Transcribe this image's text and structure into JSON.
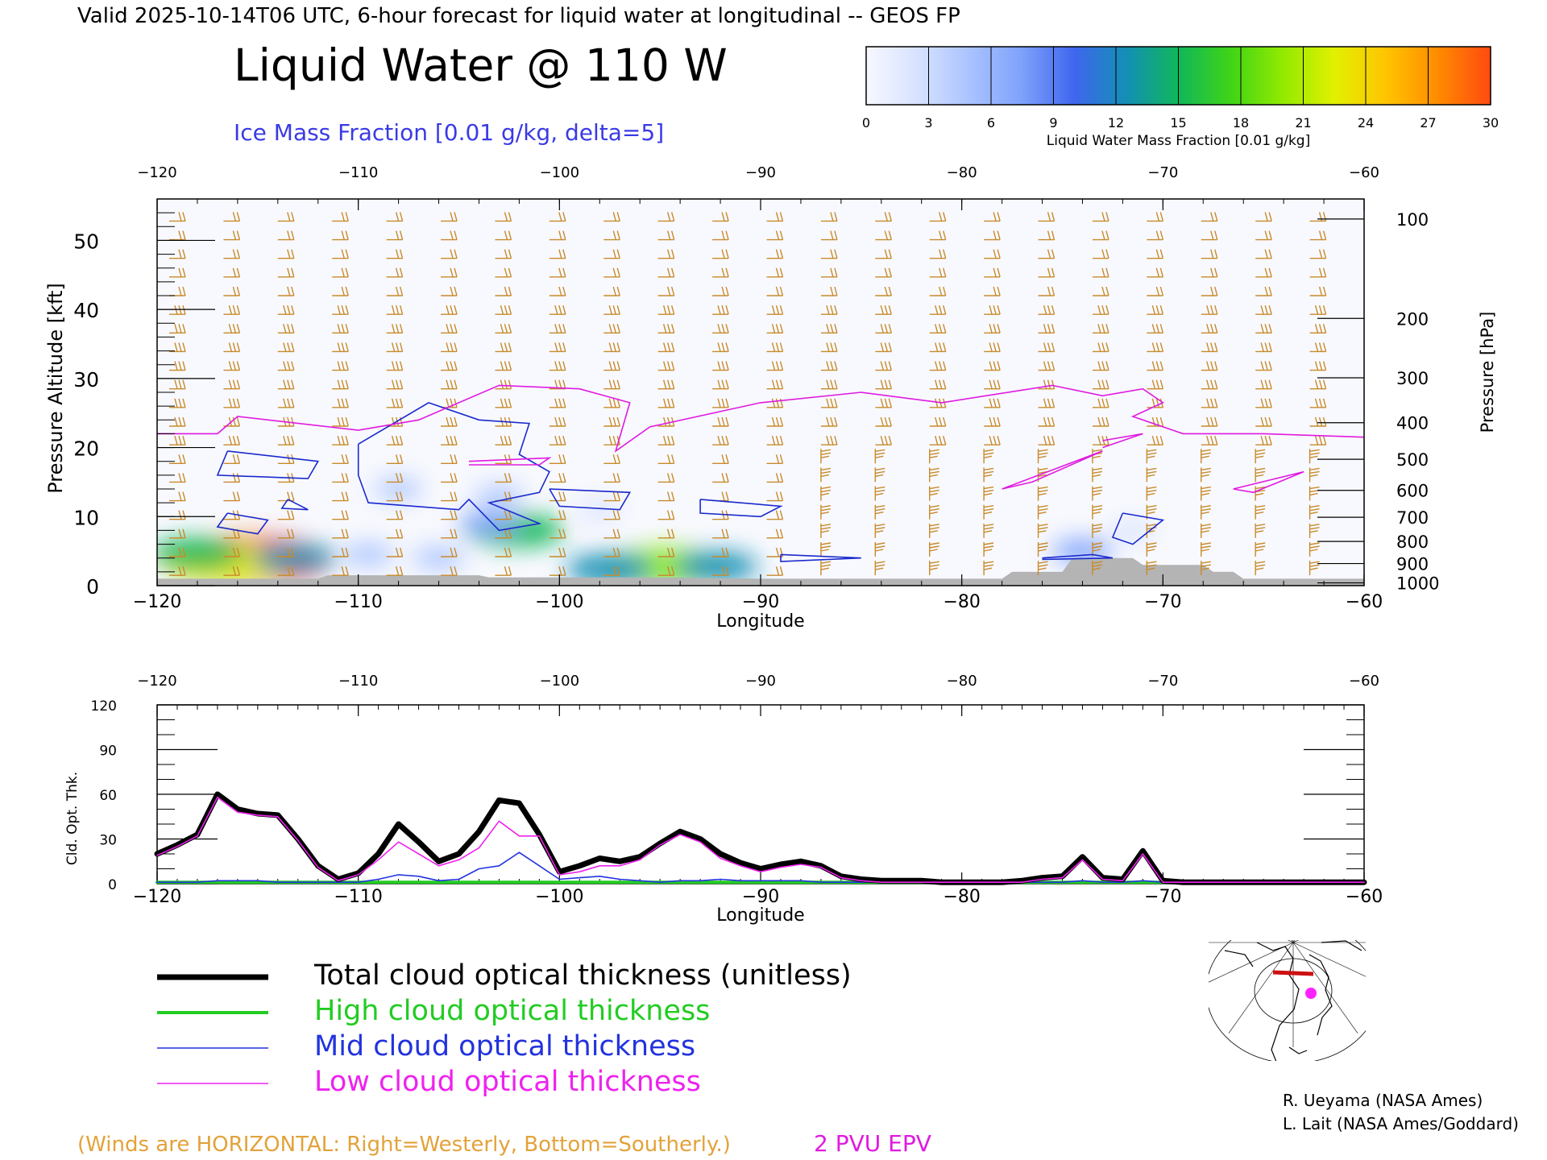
{
  "header": {
    "valid_line": "Valid 2025-10-14T06 UTC, 6-hour forecast for liquid water at longitudinal -- GEOS FP",
    "title": "Liquid Water @ 110 W",
    "subtitle": "Ice Mass Fraction [0.01 g/kg, delta=5]"
  },
  "colorbar": {
    "ticks": [
      "0",
      "3",
      "6",
      "9",
      "12",
      "15",
      "18",
      "21",
      "24",
      "27",
      "30"
    ],
    "label": "Liquid Water Mass Fraction [0.01 g/kg]",
    "colors": [
      "#f7f8ff",
      "#d7e2ff",
      "#a9c3ff",
      "#7ea1fb",
      "#3f66ee",
      "#138fb5",
      "#10b75a",
      "#3fd417",
      "#92ea00",
      "#e2f000",
      "#ffc400",
      "#ff8a00",
      "#ff4a10"
    ]
  },
  "footer": {
    "winds_note": "(Winds are HORIZONTAL: Right=Westerly, Bottom=Southerly.)",
    "pvu_label": "2 PVU EPV",
    "credit1": "R. Ueyama (NASA Ames)",
    "credit2": "L. Lait (NASA Ames/Goddard)"
  },
  "legend": [
    {
      "label": "Total cloud optical thickness (unitless)",
      "color": "#000000"
    },
    {
      "label": "High cloud optical thickness",
      "color": "#22cc22"
    },
    {
      "label": "Mid cloud optical thickness",
      "color": "#2233dd"
    },
    {
      "label": "Low cloud optical thickness",
      "color": "#ee22ee"
    }
  ],
  "chart_data": [
    {
      "type": "heatmap",
      "title": "Liquid Water @ 110 W",
      "xlabel": "Longitude",
      "ylabel": "Pressure Altitude [kft]",
      "ylabel_right": "Pressure [hPa]",
      "xlim": [
        -120,
        -60
      ],
      "ylim": [
        0,
        56
      ],
      "x_ticks": [
        "-120",
        "-110",
        "-100",
        "-90",
        "-80",
        "-70",
        "-60"
      ],
      "y_ticks": [
        "0",
        "10",
        "20",
        "30",
        "40",
        "50"
      ],
      "pressure_ticks": [
        {
          "label": "100",
          "kft": 53.1
        },
        {
          "label": "200",
          "kft": 38.7
        },
        {
          "label": "300",
          "kft": 30.1
        },
        {
          "label": "400",
          "kft": 23.6
        },
        {
          "label": "500",
          "kft": 18.3
        },
        {
          "label": "600",
          "kft": 13.8
        },
        {
          "label": "700",
          "kft": 9.9
        },
        {
          "label": "800",
          "kft": 6.4
        },
        {
          "label": "900",
          "kft": 3.2
        },
        {
          "label": "1000",
          "kft": 0.4
        }
      ],
      "liquid_water_blobs": [
        {
          "lon": -115.3,
          "kft": 3.7,
          "value": 29
        },
        {
          "lon": -116.5,
          "kft": 3.2,
          "value": 22
        },
        {
          "lon": -118.0,
          "kft": 4.6,
          "value": 14
        },
        {
          "lon": -113.2,
          "kft": 4.0,
          "value": 12
        },
        {
          "lon": -94.8,
          "kft": 2.7,
          "value": 21
        },
        {
          "lon": -97.5,
          "kft": 2.4,
          "value": 13
        },
        {
          "lon": -92.2,
          "kft": 2.8,
          "value": 12
        },
        {
          "lon": -102.2,
          "kft": 8.0,
          "value": 15
        },
        {
          "lon": -103.5,
          "kft": 9.0,
          "value": 7
        },
        {
          "lon": -109.5,
          "kft": 4.5,
          "value": 5
        },
        {
          "lon": -106.0,
          "kft": 4.0,
          "value": 5
        },
        {
          "lon": -108.0,
          "kft": 14.0,
          "value": 4
        },
        {
          "lon": -103.0,
          "kft": 13.0,
          "value": 4
        },
        {
          "lon": -98.0,
          "kft": 11.0,
          "value": 3
        },
        {
          "lon": -74.0,
          "kft": 5.0,
          "value": 7
        },
        {
          "lon": -71.5,
          "kft": 8.0,
          "value": 3
        }
      ],
      "ice_contours": [
        [
          [
            -116.5,
            19.5
          ],
          [
            -112.0,
            18.0
          ],
          [
            -112.5,
            15.5
          ],
          [
            -117.0,
            16.0
          ],
          [
            -116.5,
            19.5
          ]
        ],
        [
          [
            -116.5,
            10.5
          ],
          [
            -114.5,
            9.5
          ],
          [
            -115.0,
            7.5
          ],
          [
            -117.0,
            8.5
          ],
          [
            -116.5,
            10.5
          ]
        ],
        [
          [
            -113.5,
            12.5
          ],
          [
            -112.5,
            11.0
          ],
          [
            -113.8,
            11.2
          ],
          [
            -113.5,
            12.5
          ]
        ],
        [
          [
            -110.0,
            20.5
          ],
          [
            -106.5,
            26.5
          ],
          [
            -104.0,
            24.0
          ],
          [
            -101.5,
            23.5
          ],
          [
            -102.0,
            19.0
          ],
          [
            -100.5,
            16.5
          ],
          [
            -101.0,
            13.5
          ],
          [
            -103.5,
            12.0
          ],
          [
            -101.0,
            9.0
          ],
          [
            -103.0,
            8.0
          ],
          [
            -104.5,
            12.5
          ],
          [
            -105.0,
            11.0
          ],
          [
            -109.5,
            12.0
          ],
          [
            -110.0,
            16.0
          ],
          [
            -110.0,
            20.5
          ]
        ],
        [
          [
            -100.5,
            14.0
          ],
          [
            -96.5,
            13.5
          ],
          [
            -97.0,
            11.0
          ],
          [
            -100.0,
            11.5
          ],
          [
            -100.5,
            14.0
          ]
        ],
        [
          [
            -93.0,
            12.5
          ],
          [
            -89.0,
            11.5
          ],
          [
            -90.0,
            10.0
          ],
          [
            -93.0,
            10.5
          ],
          [
            -93.0,
            12.5
          ]
        ],
        [
          [
            -89.0,
            4.5
          ],
          [
            -85.0,
            4.0
          ],
          [
            -89.0,
            3.5
          ],
          [
            -89.0,
            4.5
          ]
        ],
        [
          [
            -72.0,
            10.5
          ],
          [
            -70.0,
            9.5
          ],
          [
            -71.5,
            6.0
          ],
          [
            -72.5,
            7.0
          ],
          [
            -72.0,
            10.5
          ]
        ],
        [
          [
            -76.0,
            4.0
          ],
          [
            -73.5,
            4.5
          ],
          [
            -72.5,
            4.0
          ],
          [
            -76.0,
            3.8
          ]
        ]
      ],
      "epv_2pvu": [
        [
          -120,
          22.0
        ],
        [
          -117,
          22.0
        ],
        [
          -116,
          24.5
        ],
        [
          -110,
          22.5
        ],
        [
          -107,
          24.0
        ],
        [
          -103,
          29.0
        ],
        [
          -99,
          28.5
        ],
        [
          -96.5,
          26.5
        ],
        [
          -97.2,
          19.5
        ],
        [
          -95.5,
          23.0
        ],
        [
          -90.0,
          26.5
        ],
        [
          -85.0,
          28.0
        ],
        [
          -81.0,
          26.5
        ],
        [
          -75.5,
          29.0
        ],
        [
          -73.0,
          27.5
        ],
        [
          -71.0,
          28.5
        ],
        [
          -70.0,
          26.5
        ],
        [
          -71.5,
          24.5
        ],
        [
          -69.0,
          22.0
        ],
        [
          -65.0,
          22.0
        ],
        [
          -60.0,
          21.5
        ]
      ],
      "epv_2pvu_islands": [
        [
          [
            -104.5,
            18.0
          ],
          [
            -100.5,
            18.5
          ],
          [
            -101.0,
            17.5
          ],
          [
            -104.5,
            17.5
          ]
        ],
        [
          [
            -78.0,
            14.0
          ],
          [
            -73.0,
            19.5
          ],
          [
            -76.5,
            15.0
          ],
          [
            -78.0,
            14.0
          ]
        ],
        [
          [
            -73.0,
            21.0
          ],
          [
            -71.0,
            22.0
          ],
          [
            -73.0,
            20.0
          ]
        ],
        [
          [
            -66.5,
            14.0
          ],
          [
            -63.0,
            16.5
          ],
          [
            -65.5,
            13.5
          ],
          [
            -66.5,
            14.0
          ]
        ]
      ],
      "terrain": [
        [
          -120,
          1.0
        ],
        [
          -112,
          1.0
        ],
        [
          -111.5,
          1.5
        ],
        [
          -104,
          1.5
        ],
        [
          -103.5,
          1.2
        ],
        [
          -95,
          1.2
        ],
        [
          -90,
          1.0
        ],
        [
          -78,
          1.0
        ],
        [
          -77.5,
          2.0
        ],
        [
          -75,
          2.0
        ],
        [
          -74.5,
          4.0
        ],
        [
          -71.5,
          4.0
        ],
        [
          -71,
          3.0
        ],
        [
          -68,
          3.0
        ],
        [
          -67.5,
          2.0
        ],
        [
          -66.5,
          2.0
        ],
        [
          -66,
          1.0
        ],
        [
          -60,
          1.0
        ]
      ]
    },
    {
      "type": "line",
      "xlabel": "Longitude",
      "ylabel": "Cld. Opt. Thk.",
      "xlim": [
        -120,
        -60
      ],
      "ylim": [
        0,
        120
      ],
      "x_ticks": [
        "-120",
        "-110",
        "-100",
        "-90",
        "-80",
        "-70",
        "-60"
      ],
      "y_ticks": [
        "0",
        "30",
        "60",
        "90",
        "120"
      ],
      "x": [
        -120,
        -119,
        -118,
        -117,
        -116,
        -115,
        -114,
        -113,
        -112,
        -111,
        -110,
        -109,
        -108,
        -107,
        -106,
        -105,
        -104,
        -103,
        -102,
        -101,
        -100,
        -99,
        -98,
        -97,
        -96,
        -95,
        -94,
        -93,
        -92,
        -91,
        -90,
        -89,
        -88,
        -87,
        -86,
        -85,
        -84,
        -83,
        -82,
        -81,
        -80,
        -79,
        -78,
        -77,
        -76,
        -75,
        -74,
        -73,
        -72,
        -71,
        -70,
        -69,
        -68,
        -67,
        -66,
        -65,
        -64,
        -63,
        -62,
        -61,
        -60
      ],
      "series": [
        {
          "name": "Total cloud optical thickness (unitless)",
          "color": "#000000",
          "values": [
            20,
            26,
            33,
            60,
            50,
            47,
            46,
            30,
            12,
            3,
            7,
            20,
            40,
            28,
            15,
            20,
            35,
            56,
            54,
            33,
            8,
            12,
            17,
            15,
            18,
            27,
            35,
            30,
            20,
            14,
            10,
            13,
            15,
            12,
            5,
            3,
            2,
            2,
            2,
            1,
            1,
            1,
            1,
            2,
            4,
            5,
            18,
            4,
            3,
            22,
            2,
            1,
            1,
            1,
            1,
            1,
            1,
            1,
            1,
            1,
            1
          ]
        },
        {
          "name": "High cloud optical thickness",
          "color": "#22cc22",
          "values": [
            1,
            1,
            1,
            1,
            1,
            1,
            1,
            1,
            1,
            1,
            1,
            1,
            1,
            1,
            1,
            1,
            1,
            1,
            1,
            1,
            1,
            1,
            1,
            1,
            1,
            1,
            1,
            1,
            1,
            1,
            1,
            1,
            1,
            1,
            1,
            1,
            1,
            1,
            1,
            1,
            1,
            1,
            1,
            1,
            1,
            1,
            1,
            1,
            1,
            1,
            1,
            1,
            1,
            1,
            1,
            1,
            1,
            1,
            1,
            1,
            1
          ]
        },
        {
          "name": "Mid cloud optical thickness",
          "color": "#2233dd",
          "values": [
            1,
            1,
            1,
            2,
            2,
            2,
            1,
            1,
            1,
            1,
            1,
            3,
            6,
            5,
            2,
            3,
            10,
            12,
            21,
            12,
            3,
            4,
            5,
            3,
            2,
            1,
            2,
            2,
            3,
            2,
            2,
            2,
            2,
            1,
            1,
            1,
            1,
            1,
            1,
            1,
            1,
            1,
            1,
            1,
            1,
            1,
            2,
            1,
            1,
            2,
            1,
            1,
            1,
            1,
            1,
            1,
            1,
            1,
            1,
            1,
            1
          ]
        },
        {
          "name": "Low cloud optical thickness",
          "color": "#ee22ee",
          "values": [
            19,
            25,
            32,
            58,
            48,
            46,
            45,
            29,
            11,
            2,
            6,
            16,
            28,
            20,
            12,
            16,
            24,
            42,
            32,
            32,
            6,
            8,
            12,
            12,
            16,
            26,
            33,
            28,
            17,
            12,
            8,
            11,
            13,
            11,
            4,
            2,
            1,
            1,
            1,
            1,
            1,
            1,
            1,
            1,
            3,
            4,
            16,
            3,
            2,
            20,
            1,
            1,
            1,
            1,
            1,
            1,
            1,
            1,
            1,
            1,
            1
          ]
        }
      ]
    }
  ]
}
